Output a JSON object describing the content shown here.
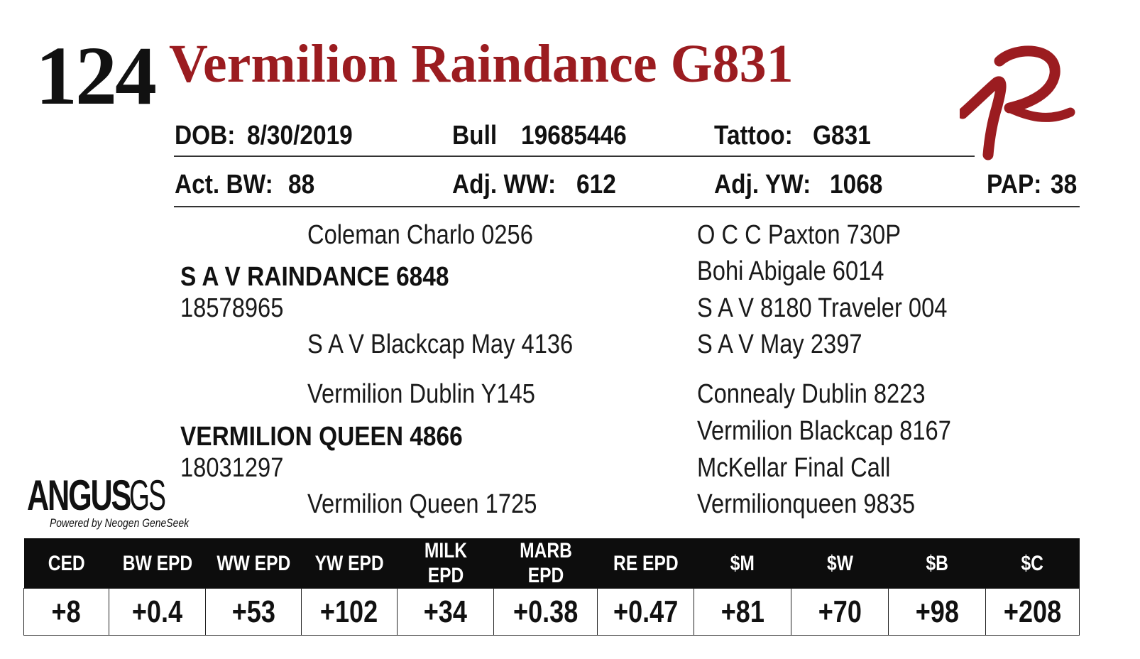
{
  "lot_number": "124",
  "animal_name": "Vermilion Raindance G831",
  "details": {
    "dob_label": "DOB:",
    "dob": "8/30/2019",
    "sex": "Bull",
    "registration": "19685446",
    "tattoo_label": "Tattoo:",
    "tattoo": "G831"
  },
  "measures": {
    "bw_label": "Act. BW:",
    "bw": "88",
    "ww_label": "Adj. WW:",
    "ww": "612",
    "yw_label": "Adj. YW:",
    "yw": "1068",
    "pap_label": "PAP:",
    "pap": "38"
  },
  "pedigree": {
    "sire": {
      "name": "S A V RAINDANCE 6848",
      "registration": "18578965",
      "sire": "Coleman Charlo 0256",
      "dam": "S A V Blackcap May 4136"
    },
    "dam": {
      "name": "VERMILION QUEEN 4866",
      "registration": "18031297",
      "sire": "Vermilion Dublin Y145",
      "dam": "Vermilion Queen 1725"
    },
    "third_generation": [
      "O C C Paxton 730P",
      "Bohi Abigale 6014",
      "S A V 8180 Traveler 004",
      "S A V May 2397",
      "Connealy Dublin 8223",
      "Vermilion Blackcap 8167",
      "McKellar Final Call",
      "Vermilionqueen 9835"
    ]
  },
  "angus_logo": {
    "word": "ANGUS",
    "suffix": "GS",
    "tagline": "Powered by Neogen GeneSeek"
  },
  "epd_table": {
    "headers": [
      "CED",
      "BW EPD",
      "WW EPD",
      "YW EPD",
      "MILK EPD",
      "MARB EPD",
      "RE EPD",
      "$M",
      "$W",
      "$B",
      "$C"
    ],
    "values": [
      "+8",
      "+0.4",
      "+53",
      "+102",
      "+34",
      "+0.38",
      "+0.47",
      "+81",
      "+70",
      "+98",
      "+208"
    ]
  },
  "colors": {
    "title": "#9b1c20",
    "logo": "#9b1c20",
    "table_header_bg": "#0d0d0d"
  }
}
